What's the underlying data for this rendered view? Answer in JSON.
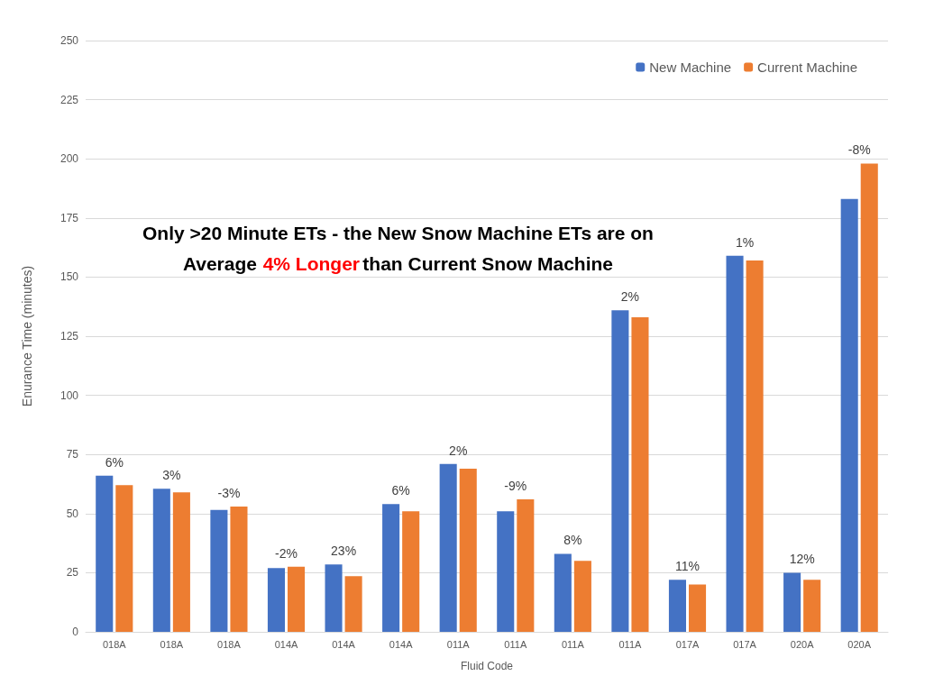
{
  "chart_data": {
    "type": "bar",
    "categories": [
      "018A",
      "018A",
      "018A",
      "014A",
      "014A",
      "014A",
      "011A",
      "011A",
      "011A",
      "011A",
      "017A",
      "017A",
      "020A",
      "020A"
    ],
    "series": [
      {
        "name": "New Machine",
        "color": "#4472c4",
        "values": [
          66,
          60.5,
          51.5,
          27,
          28.5,
          54,
          71,
          51,
          33,
          136,
          22,
          159,
          25,
          183
        ]
      },
      {
        "name": "Current Machine",
        "color": "#ed7d31",
        "values": [
          62,
          59,
          53,
          27.5,
          23.5,
          51,
          69,
          56,
          30,
          133,
          20,
          157,
          22,
          198
        ]
      }
    ],
    "xlabel": "Fluid Code",
    "ylabel": "Enurance Time (minutes)",
    "ylim": [
      0,
      250
    ],
    "yticks": [
      0,
      25,
      50,
      75,
      100,
      125,
      150,
      175,
      200,
      225,
      250
    ],
    "grid": "y",
    "legend": "top right",
    "annotations": [
      "Only >20 Minute ETs - the New Snow Machine ETs are on",
      "Average",
      "4% Longer",
      "than Current Snow Machine",
      "6%",
      "3%",
      "-3%",
      "-2%",
      "23%",
      "6%",
      "2%",
      "-9%",
      "8%",
      "2%",
      "11%",
      "1%",
      "12%",
      "-8%"
    ]
  }
}
